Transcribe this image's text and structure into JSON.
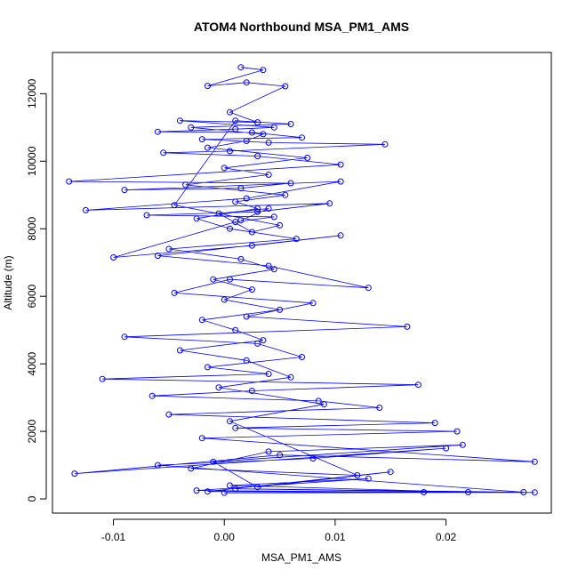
{
  "chart_data": {
    "type": "line",
    "title": "ATOM4 Northbound MSA_PM1_AMS",
    "xlabel": "MSA_PM1_AMS",
    "ylabel": "Altitude (m)",
    "xlim": [
      -0.0155,
      0.0295
    ],
    "ylim": [
      -420,
      13220
    ],
    "x_ticks": [
      -0.01,
      0.0,
      0.01,
      0.02
    ],
    "x_tick_labels": [
      "-0.01",
      "0.00",
      "0.01",
      "0.02"
    ],
    "y_ticks": [
      0,
      2000,
      4000,
      6000,
      8000,
      10000,
      12000
    ],
    "y_tick_labels": [
      "0",
      "2000",
      "4000",
      "6000",
      "8000",
      "10000",
      "12000"
    ],
    "markers": "open-circle",
    "grid": false,
    "series": [
      {
        "color": "#0000ff",
        "x": [
          0.0015,
          0.0035,
          -0.0015,
          0.002,
          0.0055,
          0.0005,
          0.003,
          -0.004,
          0.0045,
          0.001,
          -0.006,
          0.0025,
          0.007,
          -0.002,
          0.004,
          0.0145,
          0.0005,
          -0.0055,
          0.003,
          0.0105,
          -0.014,
          0.006,
          0.0015,
          -0.009,
          0.0105,
          0.002,
          -0.0125,
          0.0095,
          0.003,
          -0.007,
          0.0045,
          0.001,
          -0.01,
          0.0025,
          0.0105,
          -0.006,
          0.004,
          0.013,
          0.0005,
          -0.0045,
          0.008,
          0.002,
          0.0165,
          -0.009,
          0.003,
          0.007,
          -0.0015,
          0.004,
          -0.011,
          0.0175,
          0.0025,
          -0.0065,
          0.0085,
          0.014,
          -0.005,
          0.019,
          0.001,
          0.021,
          -0.002,
          0.028,
          0.005,
          -0.0135,
          0.02,
          0.008,
          -0.006,
          0.027,
          0.001,
          0.022,
          0.0005,
          0.013,
          -0.0025,
          0.018,
          0.0,
          0.028,
          -0.0015,
          0.015,
          0.003,
          -0.001,
          0.0215,
          0.004,
          -0.003,
          0.012,
          0.0005,
          0.009,
          -0.0005,
          0.006,
          0.002,
          -0.004,
          0.0035,
          0.001,
          -0.002,
          0.005,
          0.0,
          0.0025,
          -0.001,
          0.0045,
          0.0015,
          -0.005,
          0.0065,
          0.0005,
          -0.0025,
          0.003,
          0.001,
          0.0055,
          -0.0035,
          0.004,
          0.0,
          0.0075,
          -0.0015,
          0.002,
          0.0035,
          -0.003,
          0.006,
          0.001,
          -0.0045,
          0.005,
          0.0025,
          -0.0005,
          0.004,
          0.0015
        ],
        "y": [
          12780,
          12700,
          12230,
          12330,
          12220,
          11450,
          11150,
          11200,
          11000,
          10950,
          10870,
          10850,
          10700,
          10650,
          10550,
          10500,
          10300,
          10250,
          10150,
          9900,
          9400,
          9350,
          9200,
          9150,
          9400,
          8900,
          8550,
          8750,
          8500,
          8400,
          8350,
          8200,
          7150,
          7500,
          7800,
          7200,
          6900,
          6250,
          6500,
          6100,
          5800,
          5400,
          5100,
          4800,
          4600,
          4200,
          3900,
          3700,
          3550,
          3380,
          3200,
          3050,
          2900,
          2700,
          2500,
          2250,
          2100,
          2000,
          1800,
          1100,
          1300,
          750,
          1500,
          1200,
          1000,
          200,
          300,
          200,
          400,
          600,
          250,
          200,
          180,
          190,
          220,
          800,
          350,
          1100,
          1600,
          1400,
          900,
          700,
          2300,
          2800,
          3300,
          3600,
          4100,
          4400,
          4700,
          5000,
          5300,
          5600,
          5900,
          6200,
          6500,
          6800,
          7100,
          7400,
          7700,
          8000,
          8300,
          8600,
          8800,
          9000,
          9300,
          9600,
          9800,
          10100,
          10400,
          10600,
          10800,
          11000,
          11100,
          11200,
          8700,
          8100,
          7900,
          8450,
          8600,
          8250
        ]
      }
    ]
  }
}
